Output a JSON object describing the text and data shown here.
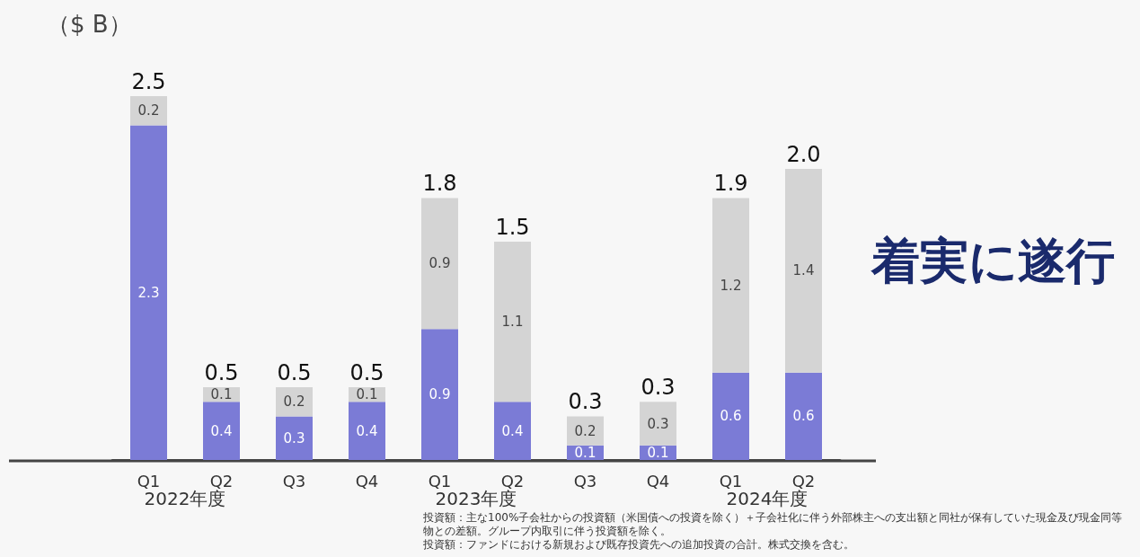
{
  "chart_data": {
    "type": "bar",
    "stacked": true,
    "data_labels": true,
    "ylabel": "（$ B）",
    "categories": [
      "Q1",
      "Q2",
      "Q3",
      "Q4",
      "Q1",
      "Q2",
      "Q3",
      "Q4",
      "Q1",
      "Q2"
    ],
    "series": [
      {
        "color": "#7b7bd6",
        "values": [
          2.3,
          0.4,
          0.3,
          0.4,
          0.9,
          0.4,
          0.1,
          0.1,
          0.6,
          0.6
        ]
      },
      {
        "color": "#d4d4d4",
        "values": [
          0.2,
          0.1,
          0.2,
          0.1,
          0.9,
          1.1,
          0.2,
          0.3,
          1.2,
          1.4
        ]
      }
    ],
    "totals": [
      "2.5",
      "0.5",
      "0.5",
      "0.5",
      "1.8",
      "1.5",
      "0.3",
      "0.3",
      "1.9",
      "2.0"
    ],
    "annotations": [
      "2022年度",
      "2023年度",
      "2024年度",
      "着実に遂行",
      "投資額：主な100%子会社からの投資額（米国債への投資を除く）＋子会社化に伴う外部株主への支出額と同社が保有していた現金及び現金同等物との差額。グループ内取引に伴う投資額を除く。",
      "投資額：ファンドにおける新規および既存投資先への追加投資の合計。株式交換を含む。"
    ]
  }
}
